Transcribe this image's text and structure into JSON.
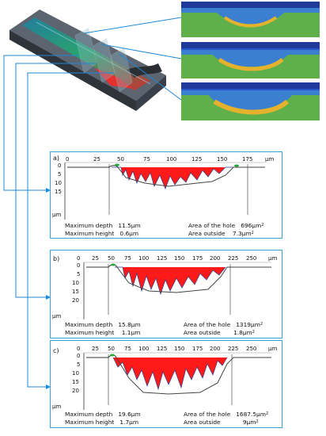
{
  "unit_x": "µm",
  "unit_y": "µm",
  "panels": [
    {
      "letter": "a)",
      "x_ticks": [
        "0",
        "25",
        "50",
        "75",
        "100",
        "125",
        "150",
        "175"
      ],
      "y_ticks": [
        "0",
        "5",
        "10",
        "15"
      ],
      "stats": {
        "max_depth_label": "Maximum depth",
        "max_depth_value": "11.5µm",
        "max_height_label": "Maximum height",
        "max_height_value": "0.6µm",
        "area_hole_label": "Area of the hole",
        "area_hole_value": "696µm",
        "area_out_label": "Area outside",
        "area_out_value": "7.3µm",
        "exp": "2"
      }
    },
    {
      "letter": "b)",
      "x_ticks": [
        "0",
        "25",
        "50",
        "75",
        "100",
        "125",
        "150",
        "175",
        "200",
        "225",
        "250"
      ],
      "y_ticks": [
        "0",
        "5",
        "10",
        "15",
        "20"
      ],
      "stats": {
        "max_depth_label": "Maximum depth",
        "max_depth_value": "15.8µm",
        "max_height_label": "Maximum height",
        "max_height_value": "1.1µm",
        "area_hole_label": "Area of the hole",
        "area_hole_value": "1319µm",
        "area_out_label": "Area outside",
        "area_out_value": "1.8µm",
        "exp": "2"
      }
    },
    {
      "letter": "c)",
      "x_ticks": [
        "0",
        "25",
        "50",
        "75",
        "100",
        "125",
        "150",
        "175",
        "200",
        "225",
        "250"
      ],
      "y_ticks": [
        "0",
        "5",
        "10",
        "15",
        "20"
      ],
      "stats": {
        "max_depth_label": "Maximum depth",
        "max_depth_value": "19.6µm",
        "max_height_label": "Maximum height",
        "max_height_value": "1.7µm",
        "area_hole_label": "Area of the hole",
        "area_hole_value": "1687.5µm",
        "area_out_label": "Area outside",
        "area_out_value": "9µm",
        "exp": "2"
      }
    }
  ],
  "colors": {
    "frame": "#3aa0d8",
    "hole": "#ff1a1a",
    "outside": "#22aa33",
    "profile": "#2b3f8c",
    "arrow": "#1e88d8"
  }
}
